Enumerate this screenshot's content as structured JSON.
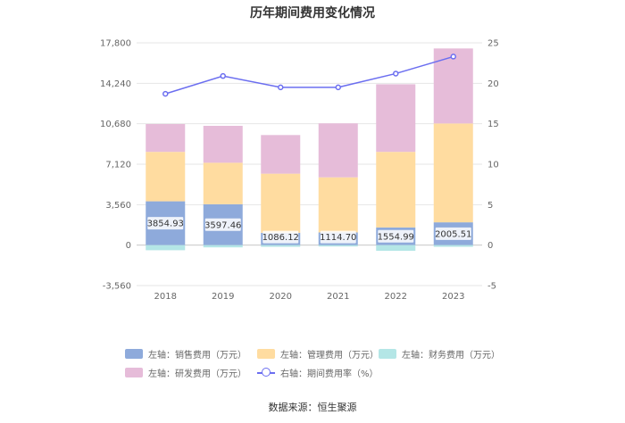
{
  "chart_data": {
    "type": "bar",
    "title": "历年期间费用变化情况",
    "categories": [
      "2018",
      "2019",
      "2020",
      "2021",
      "2022",
      "2023"
    ],
    "y_left": {
      "ticks": [
        "17,800",
        "14,240",
        "10,680",
        "7,120",
        "3,560",
        "0",
        "-3,560"
      ],
      "range": [
        -3560,
        17800
      ]
    },
    "y_right": {
      "ticks": [
        "25",
        "20",
        "15",
        "10",
        "5",
        "0",
        "-5"
      ],
      "range": [
        -5,
        25
      ]
    },
    "series": [
      {
        "name": "左轴：销售费用（万元）",
        "axis": "left",
        "kind": "bar",
        "color": "#8eaadb",
        "values": [
          3854.93,
          3597.46,
          1086.12,
          1114.7,
          1554.99,
          2005.51
        ],
        "labels": [
          "3854.93",
          "3597.46",
          "1086.12",
          "1114.70",
          "1554.99",
          "2005.51"
        ]
      },
      {
        "name": "左轴：管理费用（万元）",
        "axis": "left",
        "kind": "bar",
        "color": "#ffdca0",
        "values": [
          4350,
          3650,
          5200,
          4850,
          6650,
          8700
        ]
      },
      {
        "name": "左轴：财务费用（万元）",
        "axis": "left",
        "kind": "bar",
        "color": "#b4e6e6",
        "values": [
          -450,
          -200,
          -150,
          -120,
          -500,
          -150
        ]
      },
      {
        "name": "左轴：研发费用（万元）",
        "axis": "left",
        "kind": "bar",
        "color": "#e6bcd9",
        "values": [
          2450,
          3250,
          3400,
          4750,
          5950,
          6600
        ]
      },
      {
        "name": "右轴：期间费用率（%）",
        "axis": "right",
        "kind": "line",
        "color": "#6b6ef0",
        "values": [
          18.7,
          20.9,
          19.5,
          19.5,
          21.2,
          23.3
        ]
      }
    ]
  },
  "source": "数据来源：恒生聚源"
}
